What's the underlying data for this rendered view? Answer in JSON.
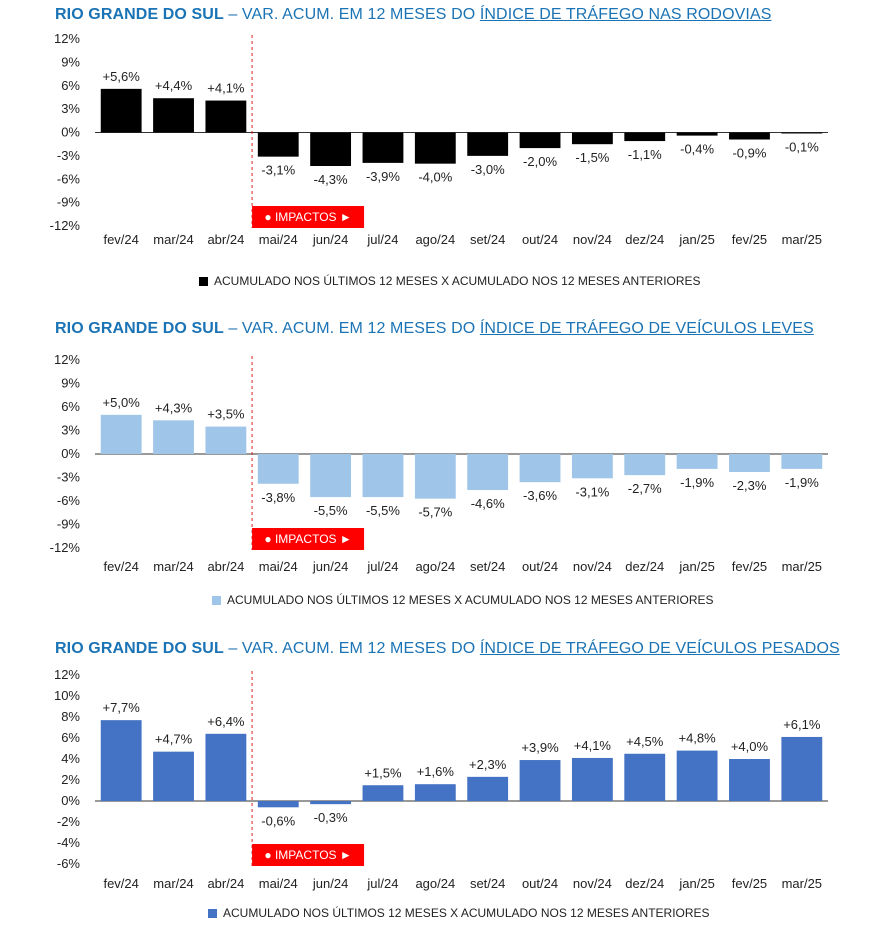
{
  "chart_data": [
    {
      "type": "bar",
      "title_region": "RIO GRANDE DO SUL",
      "title_sep": " – ",
      "title_mid": "VAR. ACUM. EM 12 MESES DO ",
      "title_link": "ÍNDICE DE TRÁFEGO NAS RODOVIAS",
      "categories": [
        "fev/24",
        "mar/24",
        "abr/24",
        "mai/24",
        "jun/24",
        "jul/24",
        "ago/24",
        "set/24",
        "out/24",
        "nov/24",
        "dez/24",
        "jan/25",
        "fev/25",
        "mar/25"
      ],
      "values": [
        5.6,
        4.4,
        4.1,
        -3.1,
        -4.3,
        -3.9,
        -4.0,
        -3.0,
        -2.0,
        -1.5,
        -1.1,
        -0.4,
        -0.9,
        -0.1
      ],
      "data_labels": [
        "+5,6%",
        "+4,4%",
        "+4,1%",
        "-3,1%",
        "-4,3%",
        "-3,9%",
        "-4,0%",
        "-3,0%",
        "-2,0%",
        "-1,5%",
        "-1,1%",
        "-0,4%",
        "-0,9%",
        "-0,1%"
      ],
      "y_ticks": [
        12,
        9,
        6,
        3,
        0,
        -3,
        -6,
        -9,
        -12
      ],
      "y_tick_labels": [
        "12%",
        "9%",
        "6%",
        "3%",
        "0%",
        "-3%",
        "-6%",
        "-9%",
        "-12%"
      ],
      "ylim": [
        -12,
        12
      ],
      "color": "#000000",
      "impact_label": "● IMPACTOS ►",
      "impact_after_index": 2,
      "legend": "ACUMULADO NOS ÚLTIMOS 12 MESES  X  ACUMULADO NOS 12 MESES ANTERIORES"
    },
    {
      "type": "bar",
      "title_region": "RIO GRANDE DO SUL",
      "title_sep": " – ",
      "title_mid": "VAR. ACUM. EM 12 MESES DO ",
      "title_link": "ÍNDICE DE TRÁFEGO DE VEÍCULOS LEVES",
      "categories": [
        "fev/24",
        "mar/24",
        "abr/24",
        "mai/24",
        "jun/24",
        "jul/24",
        "ago/24",
        "set/24",
        "out/24",
        "nov/24",
        "dez/24",
        "jan/25",
        "fev/25",
        "mar/25"
      ],
      "values": [
        5.0,
        4.3,
        3.5,
        -3.8,
        -5.5,
        -5.5,
        -5.7,
        -4.6,
        -3.6,
        -3.1,
        -2.7,
        -1.9,
        -2.3,
        -1.9
      ],
      "data_labels": [
        "+5,0%",
        "+4,3%",
        "+3,5%",
        "-3,8%",
        "-5,5%",
        "-5,5%",
        "-5,7%",
        "-4,6%",
        "-3,6%",
        "-3,1%",
        "-2,7%",
        "-1,9%",
        "-2,3%",
        "-1,9%"
      ],
      "y_ticks": [
        12,
        9,
        6,
        3,
        0,
        -3,
        -6,
        -9,
        -12
      ],
      "y_tick_labels": [
        "12%",
        "9%",
        "6%",
        "3%",
        "0%",
        "-3%",
        "-6%",
        "-9%",
        "-12%"
      ],
      "ylim": [
        -12,
        12
      ],
      "color": "#9fc5e8",
      "impact_label": "● IMPACTOS ►",
      "impact_after_index": 2,
      "legend": "ACUMULADO NOS ÚLTIMOS 12 MESES  X  ACUMULADO NOS 12 MESES ANTERIORES"
    },
    {
      "type": "bar",
      "title_region": "RIO GRANDE DO SUL",
      "title_sep": " – ",
      "title_mid": "VAR. ACUM. EM 12 MESES DO ",
      "title_link": "ÍNDICE DE TRÁFEGO DE VEÍCULOS PESADOS",
      "categories": [
        "fev/24",
        "mar/24",
        "abr/24",
        "mai/24",
        "jun/24",
        "jul/24",
        "ago/24",
        "set/24",
        "out/24",
        "nov/24",
        "dez/24",
        "jan/25",
        "fev/25",
        "mar/25"
      ],
      "values": [
        7.7,
        4.7,
        6.4,
        -0.6,
        -0.3,
        1.5,
        1.6,
        2.3,
        3.9,
        4.1,
        4.5,
        4.8,
        4.0,
        6.1
      ],
      "data_labels": [
        "+7,7%",
        "+4,7%",
        "+6,4%",
        "-0,6%",
        "-0,3%",
        "+1,5%",
        "+1,6%",
        "+2,3%",
        "+3,9%",
        "+4,1%",
        "+4,5%",
        "+4,8%",
        "+4,0%",
        "+6,1%"
      ],
      "y_ticks": [
        12,
        10,
        8,
        6,
        4,
        2,
        0,
        -2,
        -4,
        -6
      ],
      "y_tick_labels": [
        "12%",
        "10%",
        "8%",
        "6%",
        "4%",
        "2%",
        "0%",
        "-2%",
        "-4%",
        "-6%"
      ],
      "ylim": [
        -6,
        12
      ],
      "color": "#4472c4",
      "impact_label": "● IMPACTOS ►",
      "impact_after_index": 2,
      "legend": "ACUMULADO NOS ÚLTIMOS 12 MESES  X  ACUMULADO NOS 12 MESES ANTERIORES"
    }
  ]
}
